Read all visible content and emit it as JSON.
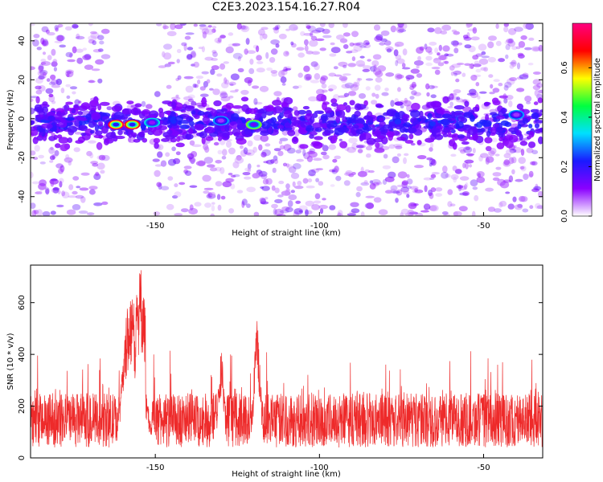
{
  "title": "C2E3.2023.154.16.27.R04",
  "chart_data": [
    {
      "type": "heatmap",
      "xlabel": "Height of straight line (km)",
      "ylabel": "Frequency (Hz)",
      "xlim": [
        -188,
        -32
      ],
      "ylim": [
        -50,
        49
      ],
      "xticks": [
        -150,
        -100,
        -50
      ],
      "yticks": [
        -40,
        -20,
        0,
        20,
        40
      ],
      "colorbar": {
        "label": "Normalized spectral amplitude",
        "range": [
          0,
          0.78
        ],
        "ticks": [
          0.0,
          0.2,
          0.4,
          0.6
        ],
        "colors": [
          "#ffffff",
          "#8a00ff",
          "#1a1aff",
          "#00e0ff",
          "#00ff40",
          "#ffff00",
          "#ff0000",
          "#ff0080"
        ]
      },
      "band": {
        "center_hz": -2,
        "half_width_hz": 8
      },
      "hotspots": [
        {
          "x": -162,
          "y": -3,
          "value": 0.72
        },
        {
          "x": -157,
          "y": -3,
          "value": 0.7
        },
        {
          "x": -120,
          "y": -3,
          "value": 0.5
        },
        {
          "x": -151,
          "y": -2,
          "value": 0.35
        },
        {
          "x": -130,
          "y": -1,
          "value": 0.3
        },
        {
          "x": -40,
          "y": 2,
          "value": 0.3
        }
      ]
    },
    {
      "type": "line",
      "xlabel": "Height of straight line (km)",
      "ylabel": "SNR (10 * v/v)",
      "xlim": [
        -188,
        -32
      ],
      "ylim": [
        0,
        745
      ],
      "xticks": [
        -150,
        -100,
        -50
      ],
      "yticks": [
        0,
        200,
        400,
        600
      ],
      "color": "#ee2a2a",
      "peaks": [
        {
          "x": -157.5,
          "y": 650
        },
        {
          "x": -154.5,
          "y": 735
        },
        {
          "x": -119,
          "y": 545
        },
        {
          "x": -130,
          "y": 430
        }
      ],
      "baseline_range": [
        40,
        250
      ]
    }
  ]
}
